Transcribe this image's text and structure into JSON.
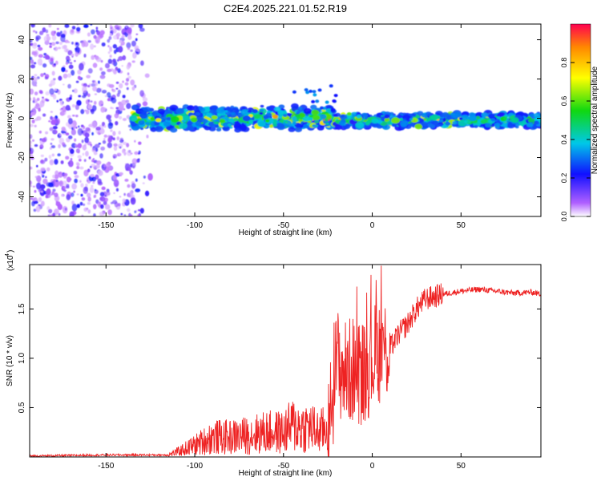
{
  "title": "C2E4.2025.221.01.52.R19",
  "colors": {
    "snr_line": "#ee2222",
    "spectrum_low": "#9b3cf5",
    "spectrum_core": "#1ec8e6",
    "spectrum_peak": "#ee1111"
  },
  "chart_data": [
    {
      "type": "heatmap",
      "xlabel": "Height of straight line (km)",
      "ylabel": "Frequency (Hz)",
      "xlim": [
        -193,
        95
      ],
      "ylim": [
        -50,
        48
      ],
      "xticks": [
        -150,
        -100,
        -50,
        0,
        50
      ],
      "yticks": [
        -40,
        -20,
        0,
        20,
        40
      ],
      "colorbar": {
        "label": "Normalized spectral amplitude",
        "range": [
          0,
          1
        ],
        "ticks": [
          "0.0",
          "0.2",
          "0.4",
          "0.6",
          "0.8"
        ]
      },
      "regions": [
        {
          "x_range": [
            -193,
            -125
          ],
          "description": "broadband noise",
          "amplitude": 0.15
        },
        {
          "x_range": [
            -135,
            -22
          ],
          "center_frequency": 0,
          "amplitude": 0.55
        },
        {
          "x_range": [
            -22,
            95
          ],
          "center_frequency": -1,
          "amplitude": 0.5
        }
      ]
    },
    {
      "type": "line",
      "xlabel": "Height of straight line (km)",
      "ylabel": "SNR (10 * v/v)",
      "yscale_label": "(x10",
      "yscale_exponent": "4",
      "xlim": [
        -193,
        95
      ],
      "ylim": [
        0,
        1.95
      ],
      "xticks": [
        -150,
        -100,
        -50,
        0,
        50
      ],
      "yticks": [
        "0.5",
        "1.0",
        "1.5"
      ],
      "series": [
        {
          "x": [
            -193,
            -150,
            -115,
            -110,
            -100,
            -90,
            -80,
            -70,
            -60,
            -50,
            -45,
            -40,
            -35,
            -30,
            -25,
            -22,
            -20,
            -18,
            -15,
            -10,
            -5,
            0,
            5,
            10,
            15,
            20,
            25,
            30,
            40,
            50,
            60,
            70,
            80,
            90,
            95
          ],
          "y": [
            0.01,
            0.02,
            0.02,
            0.05,
            0.12,
            0.2,
            0.2,
            0.22,
            0.25,
            0.25,
            0.32,
            0.3,
            0.3,
            0.25,
            0.3,
            0.65,
            1.0,
            0.9,
            0.85,
            0.9,
            0.85,
            1.0,
            1.1,
            1.1,
            1.25,
            1.35,
            1.5,
            1.6,
            1.65,
            1.68,
            1.7,
            1.68,
            1.66,
            1.67,
            1.65
          ]
        }
      ]
    }
  ]
}
